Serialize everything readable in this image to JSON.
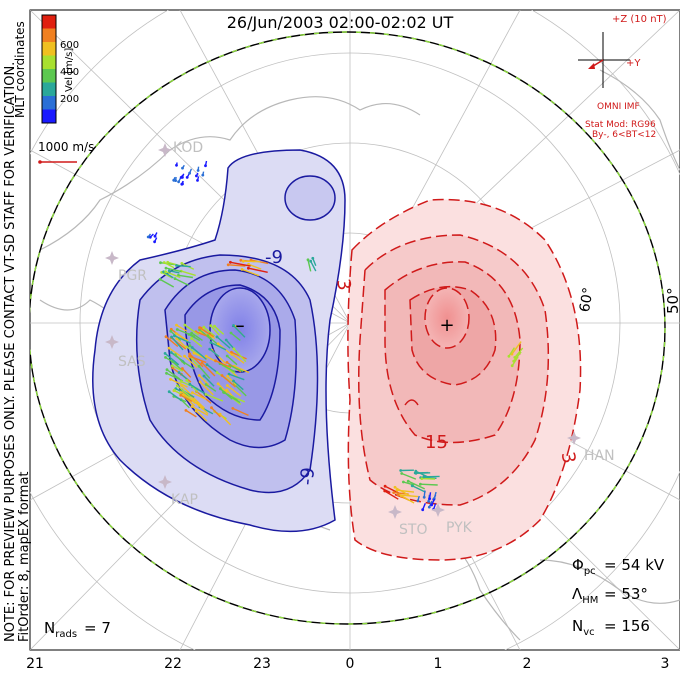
{
  "chart_data": {
    "type": "contour-map",
    "title": "26/Jun/2003 02:00-02:02 UT",
    "coordinate_system": "MLT coordinates",
    "notes": [
      "NOTE: FOR PREVIEW PURPOSES ONLY. PLEASE CONTACT VT-SD STAFF FOR VERIFICATION.",
      "FitOrder: 8, mapEX format"
    ],
    "x_tick_labels": [
      "21",
      "22",
      "23",
      "0",
      "1",
      "2",
      "3"
    ],
    "latitude_labels": [
      "60°",
      "50°"
    ],
    "contour_labels_negative": [
      "-9",
      "-9"
    ],
    "contour_labels_positive": [
      "3",
      "15",
      "3"
    ],
    "contour_step_kv": 6,
    "potential_extremes": {
      "min_symbol": "−",
      "max_symbol": "+"
    },
    "colorbar": {
      "label": "Vel [m/s]",
      "ticks": [
        "200",
        "400",
        "600"
      ],
      "range": [
        0,
        800
      ],
      "colors": [
        "#1a1aff",
        "#2a6fd6",
        "#2aa89a",
        "#5cc850",
        "#a8e030",
        "#f0c020",
        "#f08020",
        "#e02010"
      ]
    },
    "velocity_scale": "1000 m/s",
    "imf": {
      "title": "+Z (10 nT)",
      "y_label": "+Y",
      "source": "OMNI IMF",
      "model": "Stat Mod: RG96",
      "model_condition": "By-, 6<BT<12"
    },
    "stations": [
      "KOD",
      "PGR",
      "SAS",
      "KAP",
      "STO",
      "PYK",
      "HAN"
    ],
    "stats": {
      "phi_pc_label": "Φpc",
      "phi_pc": "= 54 kV",
      "lambda_hm_label": "ΛHM",
      "lambda_hm": "= 53°",
      "n_vc_label": "Nvc",
      "n_vc": "= 156",
      "n_rads_label": "Nrads",
      "n_rads": "= 7"
    },
    "grid": true,
    "boundary_lat_deg": 53
  },
  "colors": {
    "negative_cell": "#c8c8f0",
    "negative_contour": "#1a1aa0",
    "positive_cell": "#f8d0d0",
    "positive_contour": "#d01a1a",
    "grid": "#c0c0c0",
    "imf_text": "#d01a1a",
    "land": "#b8b8b8"
  }
}
